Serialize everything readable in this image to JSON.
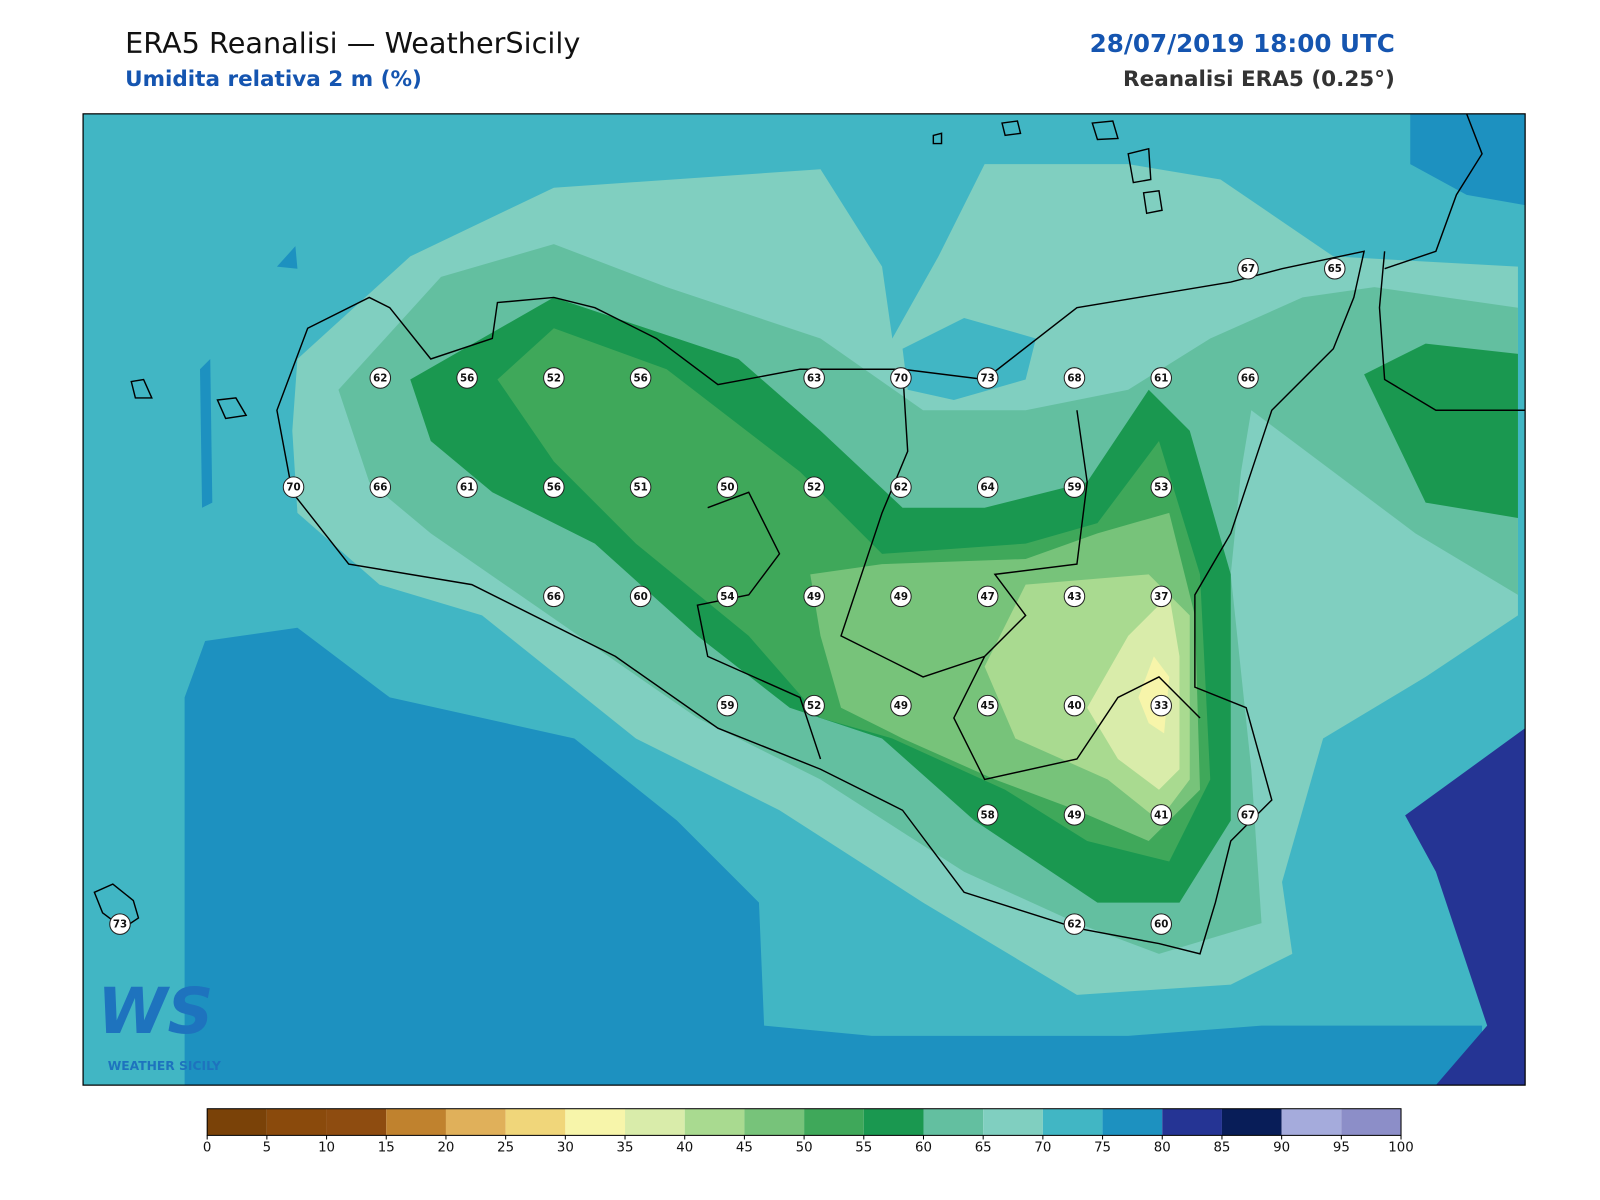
{
  "header": {
    "title": "ERA5 Reanalisi — WeatherSicily",
    "subtitle": "Umidita relativa 2 m (%)",
    "datetime": "28/07/2019 18:00 UTC",
    "source": "Reanalisi ERA5 (0.25°)"
  },
  "stations": [
    [
      null,
      null,
      null,
      null,
      null,
      null,
      null,
      null,
      null,
      null,
      null,
      null,
      null,
      67,
      65
    ],
    [
      null,
      null,
      null,
      62,
      56,
      52,
      56,
      null,
      63,
      70,
      73,
      68,
      61,
      66,
      null
    ],
    [
      null,
      null,
      70,
      66,
      61,
      56,
      51,
      50,
      52,
      62,
      64,
      59,
      53,
      null,
      null
    ],
    [
      null,
      null,
      null,
      null,
      null,
      66,
      60,
      54,
      49,
      49,
      47,
      43,
      37,
      null,
      null
    ],
    [
      null,
      null,
      null,
      null,
      null,
      null,
      null,
      59,
      52,
      49,
      45,
      40,
      33,
      null,
      null
    ],
    [
      null,
      null,
      null,
      null,
      null,
      null,
      null,
      null,
      null,
      null,
      58,
      49,
      41,
      67,
      null
    ],
    [
      73,
      null,
      null,
      null,
      null,
      null,
      null,
      null,
      null,
      null,
      null,
      62,
      60,
      null,
      null
    ]
  ],
  "colorbar": {
    "ticks": [
      0,
      5,
      10,
      15,
      20,
      25,
      30,
      35,
      40,
      45,
      50,
      55,
      60,
      65,
      70,
      75,
      80,
      85,
      90,
      95,
      100
    ],
    "colors": [
      "#7a4208",
      "#8a4a0c",
      "#8e4c10",
      "#c0822e",
      "#e0b05a",
      "#f0d67a",
      "#f7f5aa",
      "#d9ecaa",
      "#a9da90",
      "#77c37a",
      "#3fa85a",
      "#1a9850",
      "#63bfa0",
      "#80cfc0",
      "#41b6c4",
      "#1d91c0",
      "#253494",
      "#081d58",
      "#a5abdc",
      "#8c8ec8"
    ]
  },
  "logo": {
    "mark": "WS",
    "name": "WEATHER SICILY"
  }
}
